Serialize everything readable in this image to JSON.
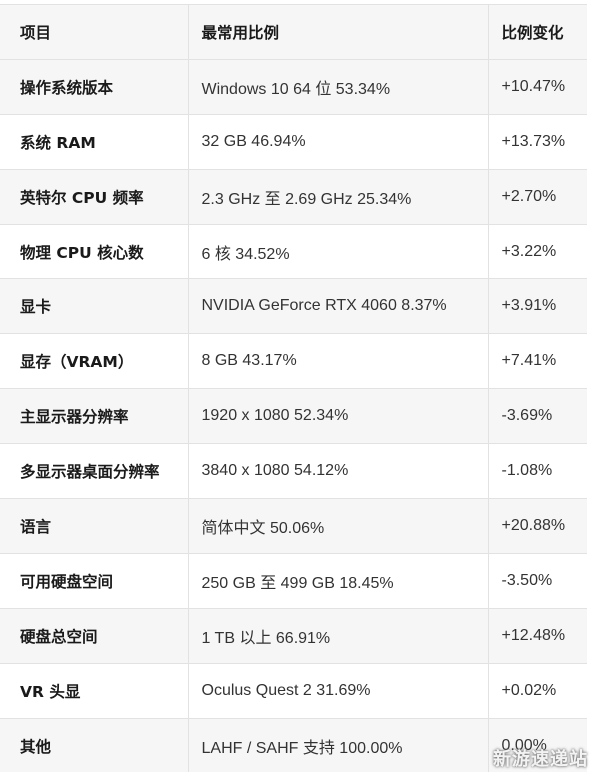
{
  "table": {
    "headers": [
      "项目",
      "最常用比例",
      "比例变化"
    ],
    "rows": [
      {
        "item": "操作系统版本",
        "value": "Windows 10 64 位 53.34%",
        "change": "+10.47%"
      },
      {
        "item": "系统 RAM",
        "value": "32 GB 46.94%",
        "change": "+13.73%"
      },
      {
        "item": "英特尔 CPU 频率",
        "value": "2.3 GHz 至 2.69 GHz 25.34%",
        "change": "+2.70%"
      },
      {
        "item": "物理 CPU 核心数",
        "value": "6 核 34.52%",
        "change": "+3.22%"
      },
      {
        "item": "显卡",
        "value": "NVIDIA GeForce RTX 4060 8.37%",
        "change": "+3.91%"
      },
      {
        "item": "显存（VRAM）",
        "value": "8 GB 43.17%",
        "change": "+7.41%"
      },
      {
        "item": "主显示器分辨率",
        "value": "1920 x 1080 52.34%",
        "change": "-3.69%"
      },
      {
        "item": "多显示器桌面分辨率",
        "value": "3840 x 1080 54.12%",
        "change": "-1.08%"
      },
      {
        "item": "语言",
        "value": "简体中文 50.06%",
        "change": "+20.88%"
      },
      {
        "item": "可用硬盘空间",
        "value": "250 GB 至 499 GB 18.45%",
        "change": "-3.50%"
      },
      {
        "item": "硬盘总空间",
        "value": "1 TB 以上 66.91%",
        "change": "+12.48%"
      },
      {
        "item": "VR 头显",
        "value": "Oculus Quest 2 31.69%",
        "change": "+0.02%"
      },
      {
        "item": "其他",
        "value": "LAHF / SAHF 支持 100.00%",
        "change": "0.00%"
      }
    ]
  },
  "watermark": "新游速递站",
  "colors": {
    "row_alt": "#f6f6f6",
    "border": "#e2e2e2",
    "text": "#1a1a1a"
  }
}
